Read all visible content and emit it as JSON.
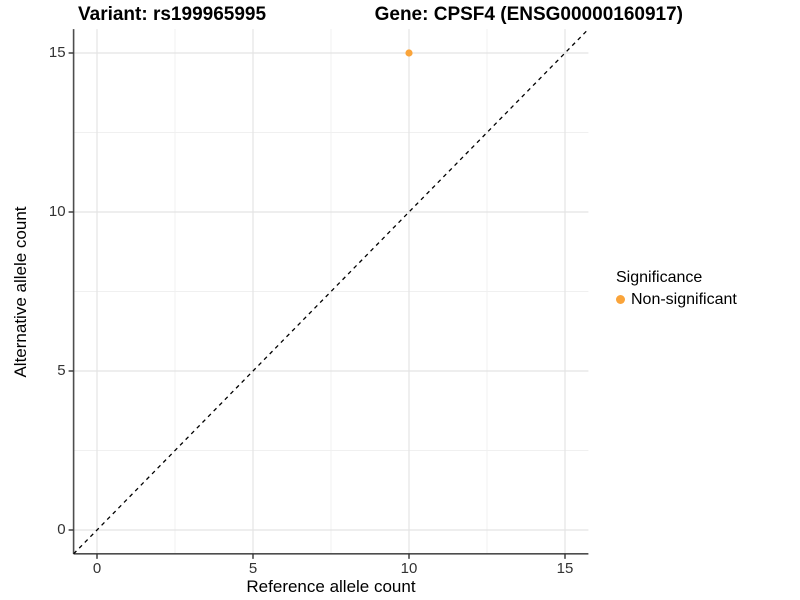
{
  "titles": {
    "variant": "Variant: rs199965995",
    "gene": "Gene: CPSF4 (ENSG00000160917)"
  },
  "axes": {
    "x": {
      "label": "Reference allele count",
      "ticks": [
        0,
        5,
        10,
        15
      ],
      "minor_ticks": [
        2.5,
        7.5,
        12.5
      ]
    },
    "y": {
      "label": "Alternative allele count",
      "ticks": [
        0,
        5,
        10,
        15
      ],
      "minor_ticks": [
        2.5,
        7.5,
        12.5
      ]
    }
  },
  "legend": {
    "title": "Significance",
    "items": [
      {
        "label": "Non-significant",
        "color": "#FAA43A"
      }
    ]
  },
  "colors": {
    "point": "#FAA43A",
    "grid_major": "#E4E4E4",
    "grid_minor": "#F0F0F0",
    "axis_line": "#4D4D4D",
    "tick_mark": "#333333",
    "reference_line": "#000000",
    "background": "#FFFFFF"
  },
  "chart_data": {
    "type": "scatter",
    "title": "Variant: rs199965995 — Gene: CPSF4 (ENSG00000160917)",
    "xlabel": "Reference allele count",
    "ylabel": "Alternative allele count",
    "xlim": [
      -0.75,
      15.75
    ],
    "ylim": [
      -0.75,
      15.75
    ],
    "x_ticks": [
      0,
      5,
      10,
      15
    ],
    "y_ticks": [
      0,
      5,
      10,
      15
    ],
    "grid": "on",
    "legend_position": "right",
    "series": [
      {
        "name": "Non-significant",
        "color": "#FAA43A",
        "points": [
          {
            "x": 10,
            "y": 15
          }
        ]
      }
    ],
    "reference_line": {
      "kind": "identity",
      "slope": 1,
      "intercept": 0,
      "style": "dashed",
      "color": "#000000"
    }
  }
}
